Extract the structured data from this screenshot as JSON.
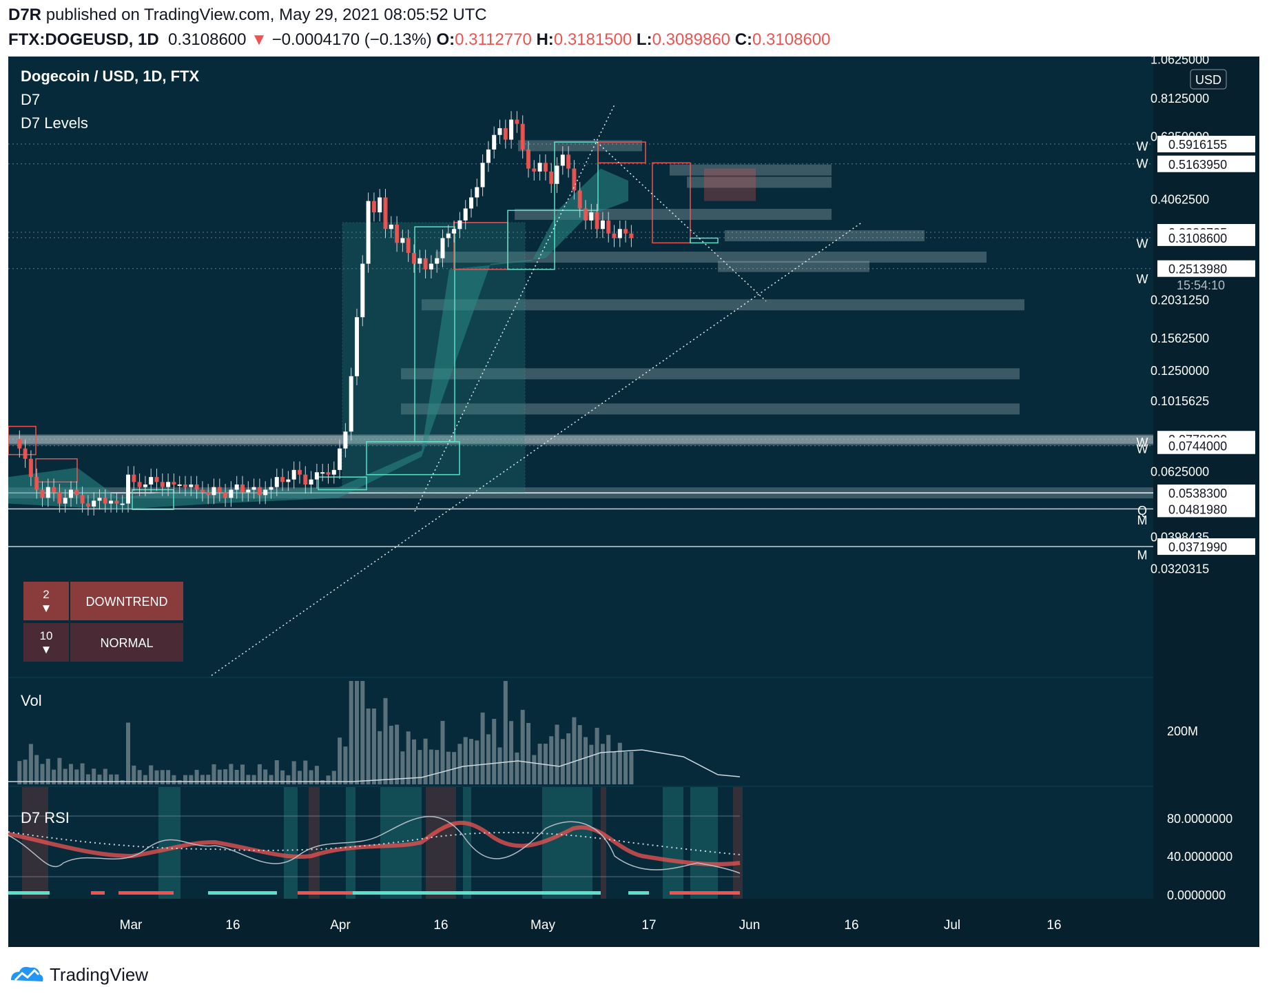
{
  "header": {
    "publisher": "D7R",
    "published_text": "published on TradingView.com, May 29, 2021 08:05:52 UTC",
    "symbol": "FTX:DOGEUSD, 1D",
    "last": "0.3108600",
    "arrow": "▼",
    "change": "−0.0004170 (−0.13%)",
    "o_label": "O:",
    "o": "0.3112770",
    "h_label": "H:",
    "h": "0.3181500",
    "l_label": "L:",
    "l": "0.3089860",
    "c_label": "C:",
    "c": "0.3108600"
  },
  "legend": {
    "title": "Dogecoin / USD, 1D, FTX",
    "ind1": "D7",
    "ind2": "D7 Levels"
  },
  "currency_badge": "USD",
  "countdown": "15:54:10",
  "trend_table": {
    "rows": [
      {
        "count": "2",
        "arrow": "▼",
        "state": "DOWNTREND"
      },
      {
        "count": "10",
        "arrow": "▼",
        "state": "NORMAL"
      }
    ]
  },
  "panes": {
    "volume_title": "Vol",
    "volume_tick": "200M",
    "rsi_title": "D7 RSI",
    "rsi_ticks": [
      "80.0000000",
      "40.0000000",
      "0.0000000"
    ]
  },
  "colors": {
    "background": "#0c1f2c",
    "bull": "#5ee0c7",
    "bear": "#ef5350",
    "candle_body": "#ffffff",
    "level": "#9fb1bd"
  },
  "footer": {
    "brand": "TradingView"
  },
  "chart_data": {
    "type": "candlestick",
    "scale": "log",
    "x_ticks": [
      "Mar",
      "16",
      "Apr",
      "16",
      "May",
      "17",
      "Jun",
      "16",
      "Jul",
      "16"
    ],
    "y_ticks": [
      "1.0625000",
      "0.8125000",
      "0.6250000",
      "0.4062500",
      "0.2031250",
      "0.1562500",
      "0.1250000",
      "0.1015625",
      "0.0625000",
      "0.0398435",
      "0.0320315"
    ],
    "y_price_labels": [
      "0.5916155",
      "0.5163950",
      "0.3226725",
      "0.3108600",
      "0.2513980",
      "0.0778290",
      "0.0744000",
      "0.0538300",
      "0.0481980",
      "0.0371990"
    ],
    "level_markers": [
      "W",
      "W",
      "W",
      "W",
      "W",
      "W",
      "Q",
      "M",
      "M"
    ],
    "last_price": 0.31086,
    "ohlc_sample": [
      {
        "date": "2021-04-15",
        "close": 0.4
      },
      {
        "date": "2021-04-16",
        "close": 0.37
      },
      {
        "date": "2021-05-08",
        "close": 0.7
      },
      {
        "date": "2021-05-28",
        "close": 0.31086
      }
    ]
  }
}
